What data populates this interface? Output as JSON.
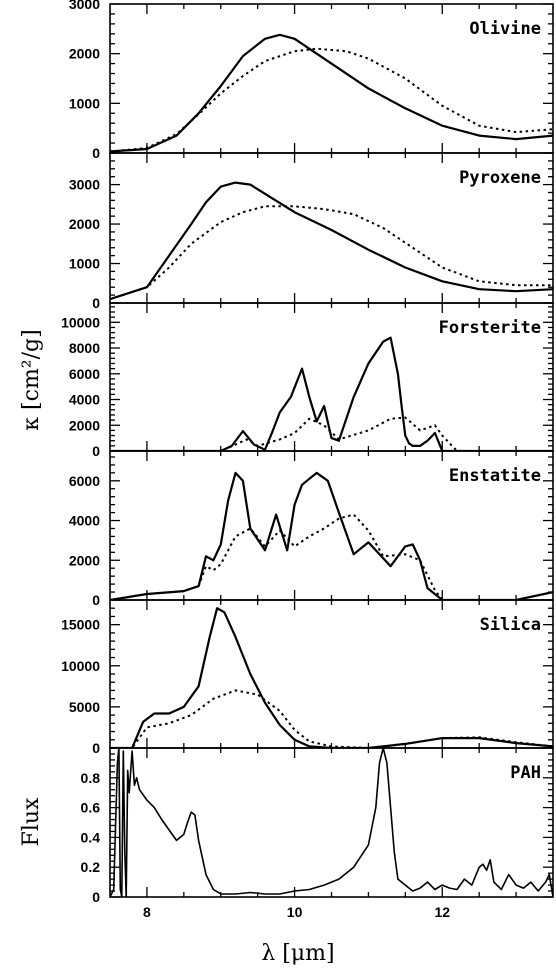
{
  "chart_data": {
    "type": "line",
    "xlabel": "λ [μm]",
    "ylabel": "κ [cm²/g]",
    "flux_label": "Flux",
    "xlim": [
      7.5,
      13.5
    ],
    "xticks": [
      8,
      10,
      12
    ],
    "panels": [
      {
        "name": "Olivine",
        "ylim": [
          0,
          3000
        ],
        "yticks": [
          0,
          1000,
          2000,
          3000
        ],
        "series": [
          {
            "style": "solid",
            "x": [
              7.5,
              8.0,
              8.4,
              8.7,
              9.0,
              9.3,
              9.6,
              9.8,
              10.0,
              10.3,
              10.6,
              11.0,
              11.5,
              12.0,
              12.5,
              13.0,
              13.5
            ],
            "y": [
              30,
              80,
              350,
              800,
              1350,
              1950,
              2300,
              2380,
              2300,
              2000,
              1700,
              1300,
              900,
              550,
              350,
              280,
              350
            ]
          },
          {
            "style": "dotted",
            "x": [
              7.5,
              8.0,
              8.4,
              8.7,
              9.0,
              9.3,
              9.6,
              10.0,
              10.3,
              10.7,
              11.0,
              11.5,
              12.0,
              12.5,
              13.0,
              13.5
            ],
            "y": [
              30,
              100,
              380,
              780,
              1200,
              1550,
              1850,
              2050,
              2100,
              2050,
              1900,
              1500,
              950,
              550,
              420,
              480
            ]
          }
        ]
      },
      {
        "name": "Pyroxene",
        "ylim": [
          0,
          3800
        ],
        "yticks": [
          0,
          1000,
          2000,
          3000
        ],
        "series": [
          {
            "style": "solid",
            "x": [
              7.5,
              8.0,
              8.3,
              8.6,
              8.8,
              9.0,
              9.2,
              9.4,
              9.7,
              10.0,
              10.5,
              11.0,
              11.5,
              12.0,
              12.5,
              13.0,
              13.5
            ],
            "y": [
              100,
              400,
              1200,
              2000,
              2550,
              2950,
              3050,
              3000,
              2650,
              2300,
              1850,
              1350,
              900,
              550,
              350,
              300,
              350
            ]
          },
          {
            "style": "dotted",
            "x": [
              7.5,
              8.0,
              8.3,
              8.6,
              9.0,
              9.3,
              9.6,
              10.0,
              10.4,
              10.8,
              11.2,
              11.6,
              12.0,
              12.5,
              13.0,
              13.5
            ],
            "y": [
              100,
              400,
              900,
              1500,
              2050,
              2300,
              2450,
              2450,
              2380,
              2250,
              1900,
              1400,
              900,
              550,
              450,
              450
            ]
          }
        ]
      },
      {
        "name": "Forsterite",
        "ylim": [
          0,
          11500
        ],
        "yticks": [
          0,
          2000,
          4000,
          6000,
          8000,
          10000
        ],
        "series": [
          {
            "style": "solid",
            "x": [
              7.5,
              9.0,
              9.15,
              9.3,
              9.45,
              9.6,
              9.7,
              9.8,
              9.95,
              10.1,
              10.2,
              10.3,
              10.4,
              10.5,
              10.6,
              10.8,
              11.0,
              11.2,
              11.3,
              11.4,
              11.45,
              11.5,
              11.55,
              11.6,
              11.7,
              11.8,
              11.9,
              12.0,
              13.5
            ],
            "y": [
              0,
              0,
              400,
              1550,
              500,
              100,
              1500,
              3000,
              4200,
              6400,
              4200,
              2300,
              3500,
              1000,
              800,
              4200,
              6800,
              8500,
              8800,
              6000,
              3500,
              1200,
              600,
              400,
              400,
              800,
              1400,
              0,
              0
            ]
          },
          {
            "style": "dotted",
            "x": [
              7.5,
              9.0,
              9.2,
              9.35,
              9.5,
              9.8,
              10.0,
              10.2,
              10.4,
              10.6,
              11.0,
              11.3,
              11.5,
              11.7,
              11.9,
              12.0,
              12.2,
              13.5
            ],
            "y": [
              0,
              0,
              500,
              900,
              400,
              900,
              1400,
              2500,
              2000,
              900,
              1600,
              2500,
              2600,
              1600,
              2000,
              1200,
              0,
              0
            ]
          }
        ]
      },
      {
        "name": "Enstatite",
        "ylim": [
          0,
          7500
        ],
        "yticks": [
          0,
          2000,
          4000,
          6000
        ],
        "series": [
          {
            "style": "solid",
            "x": [
              7.5,
              8.0,
              8.5,
              8.7,
              8.8,
              8.9,
              9.0,
              9.1,
              9.2,
              9.3,
              9.4,
              9.6,
              9.75,
              9.9,
              10.0,
              10.1,
              10.2,
              10.3,
              10.45,
              10.6,
              10.8,
              10.9,
              11.0,
              11.1,
              11.3,
              11.5,
              11.6,
              11.7,
              11.8,
              12.0,
              13.0,
              13.5
            ],
            "y": [
              0,
              300,
              450,
              700,
              2200,
              2000,
              2800,
              5000,
              6400,
              6000,
              3600,
              2500,
              4300,
              2500,
              4800,
              5800,
              6100,
              6400,
              6000,
              4400,
              2300,
              2600,
              2900,
              2500,
              1700,
              2700,
              2800,
              2000,
              600,
              0,
              0,
              400
            ]
          },
          {
            "style": "dotted",
            "x": [
              7.5,
              8.0,
              8.5,
              8.7,
              8.8,
              8.9,
              9.0,
              9.2,
              9.4,
              9.6,
              9.8,
              10.0,
              10.2,
              10.4,
              10.6,
              10.8,
              11.0,
              11.2,
              11.5,
              11.7,
              11.9,
              12.0,
              13.5
            ],
            "y": [
              0,
              300,
              450,
              700,
              1700,
              1500,
              1800,
              3200,
              3600,
              2700,
              3500,
              2700,
              3200,
              3600,
              4100,
              4300,
              3500,
              2200,
              2300,
              2000,
              500,
              0,
              0
            ]
          }
        ]
      },
      {
        "name": "Silica",
        "ylim": [
          0,
          18000
        ],
        "yticks": [
          0,
          5000,
          10000,
          15000
        ],
        "series": [
          {
            "style": "solid",
            "x": [
              7.5,
              7.8,
              7.95,
              8.1,
              8.3,
              8.5,
              8.7,
              8.85,
              8.95,
              9.05,
              9.2,
              9.4,
              9.6,
              9.8,
              10.0,
              10.2,
              10.5,
              11.0,
              11.5,
              12.0,
              12.5,
              13.0,
              13.5
            ],
            "y": [
              0,
              0,
              3200,
              4200,
              4200,
              5000,
              7500,
              13500,
              17000,
              16500,
              13500,
              9000,
              5500,
              2800,
              1000,
              200,
              0,
              0,
              500,
              1200,
              1200,
              600,
              200
            ]
          },
          {
            "style": "dotted",
            "x": [
              7.5,
              7.8,
              8.0,
              8.3,
              8.6,
              8.9,
              9.2,
              9.5,
              9.8,
              10.0,
              10.2,
              10.5,
              11.0,
              11.5,
              12.0,
              12.5,
              13.0,
              13.5
            ],
            "y": [
              0,
              0,
              2500,
              3000,
              4000,
              6000,
              7000,
              6500,
              4500,
              2200,
              800,
              200,
              0,
              500,
              1200,
              1300,
              700,
              200
            ]
          }
        ]
      },
      {
        "name": "PAH",
        "ylim": [
          0,
          1.0
        ],
        "yticks": [
          0,
          0.2,
          0.4,
          0.6,
          0.8
        ],
        "series": [
          {
            "style": "pah",
            "x": [
              7.5,
              7.55,
              7.6,
              7.62,
              7.64,
              7.66,
              7.68,
              7.7,
              7.72,
              7.74,
              7.76,
              7.8,
              7.83,
              7.86,
              7.9,
              8.0,
              8.1,
              8.2,
              8.3,
              8.4,
              8.5,
              8.55,
              8.6,
              8.65,
              8.7,
              8.8,
              8.9,
              9.0,
              9.2,
              9.4,
              9.6,
              9.8,
              10.0,
              10.2,
              10.4,
              10.6,
              10.8,
              11.0,
              11.1,
              11.15,
              11.2,
              11.25,
              11.3,
              11.35,
              11.4,
              11.5,
              11.6,
              11.7,
              11.8,
              11.9,
              12.0,
              12.1,
              12.2,
              12.3,
              12.4,
              12.5,
              12.55,
              12.6,
              12.65,
              12.7,
              12.8,
              12.9,
              13.0,
              13.1,
              13.2,
              13.3,
              13.4,
              13.45,
              13.5
            ],
            "y": [
              0,
              0.05,
              0.9,
              1.0,
              0.05,
              0,
              0.98,
              0.3,
              0,
              0.85,
              0.7,
              0.98,
              0.75,
              0.8,
              0.72,
              0.65,
              0.6,
              0.52,
              0.45,
              0.38,
              0.42,
              0.5,
              0.57,
              0.55,
              0.38,
              0.15,
              0.05,
              0.02,
              0.02,
              0.03,
              0.02,
              0.02,
              0.04,
              0.05,
              0.08,
              0.12,
              0.2,
              0.35,
              0.6,
              0.9,
              1.0,
              0.9,
              0.6,
              0.3,
              0.12,
              0.08,
              0.04,
              0.06,
              0.1,
              0.05,
              0.08,
              0.06,
              0.05,
              0.12,
              0.08,
              0.2,
              0.22,
              0.18,
              0.25,
              0.1,
              0.05,
              0.15,
              0.08,
              0.06,
              0.1,
              0.04,
              0.1,
              0.15,
              0
            ]
          }
        ]
      }
    ]
  }
}
